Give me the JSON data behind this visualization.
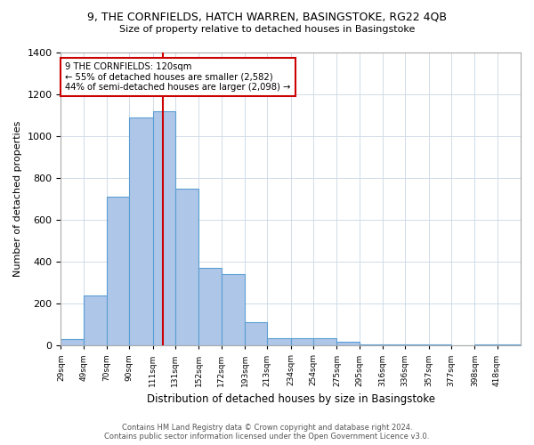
{
  "title_line1": "9, THE CORNFIELDS, HATCH WARREN, BASINGSTOKE, RG22 4QB",
  "title_line2": "Size of property relative to detached houses in Basingstoke",
  "xlabel": "Distribution of detached houses by size in Basingstoke",
  "ylabel": "Number of detached properties",
  "annotation_line1": "9 THE CORNFIELDS: 120sqm",
  "annotation_line2": "← 55% of detached houses are smaller (2,582)",
  "annotation_line3": "44% of semi-detached houses are larger (2,098) →",
  "footer_line1": "Contains HM Land Registry data © Crown copyright and database right 2024.",
  "footer_line2": "Contains public sector information licensed under the Open Government Licence v3.0.",
  "bar_color": "#aec6e8",
  "bar_edge_color": "#5a9fd4",
  "grid_color": "#d0dce8",
  "annotation_box_color": "#cc0000",
  "property_line_color": "#cc0000",
  "background_color": "#ffffff",
  "bins": [
    29,
    49,
    70,
    90,
    111,
    131,
    152,
    172,
    193,
    213,
    234,
    254,
    275,
    295,
    316,
    336,
    357,
    377,
    398,
    418,
    439
  ],
  "counts": [
    30,
    240,
    710,
    1090,
    1120,
    750,
    370,
    340,
    110,
    35,
    35,
    35,
    20,
    5,
    5,
    5,
    5,
    0,
    5,
    5,
    0
  ],
  "property_size": 120,
  "ylim": [
    0,
    1400
  ],
  "yticks": [
    0,
    200,
    400,
    600,
    800,
    1000,
    1200,
    1400
  ]
}
